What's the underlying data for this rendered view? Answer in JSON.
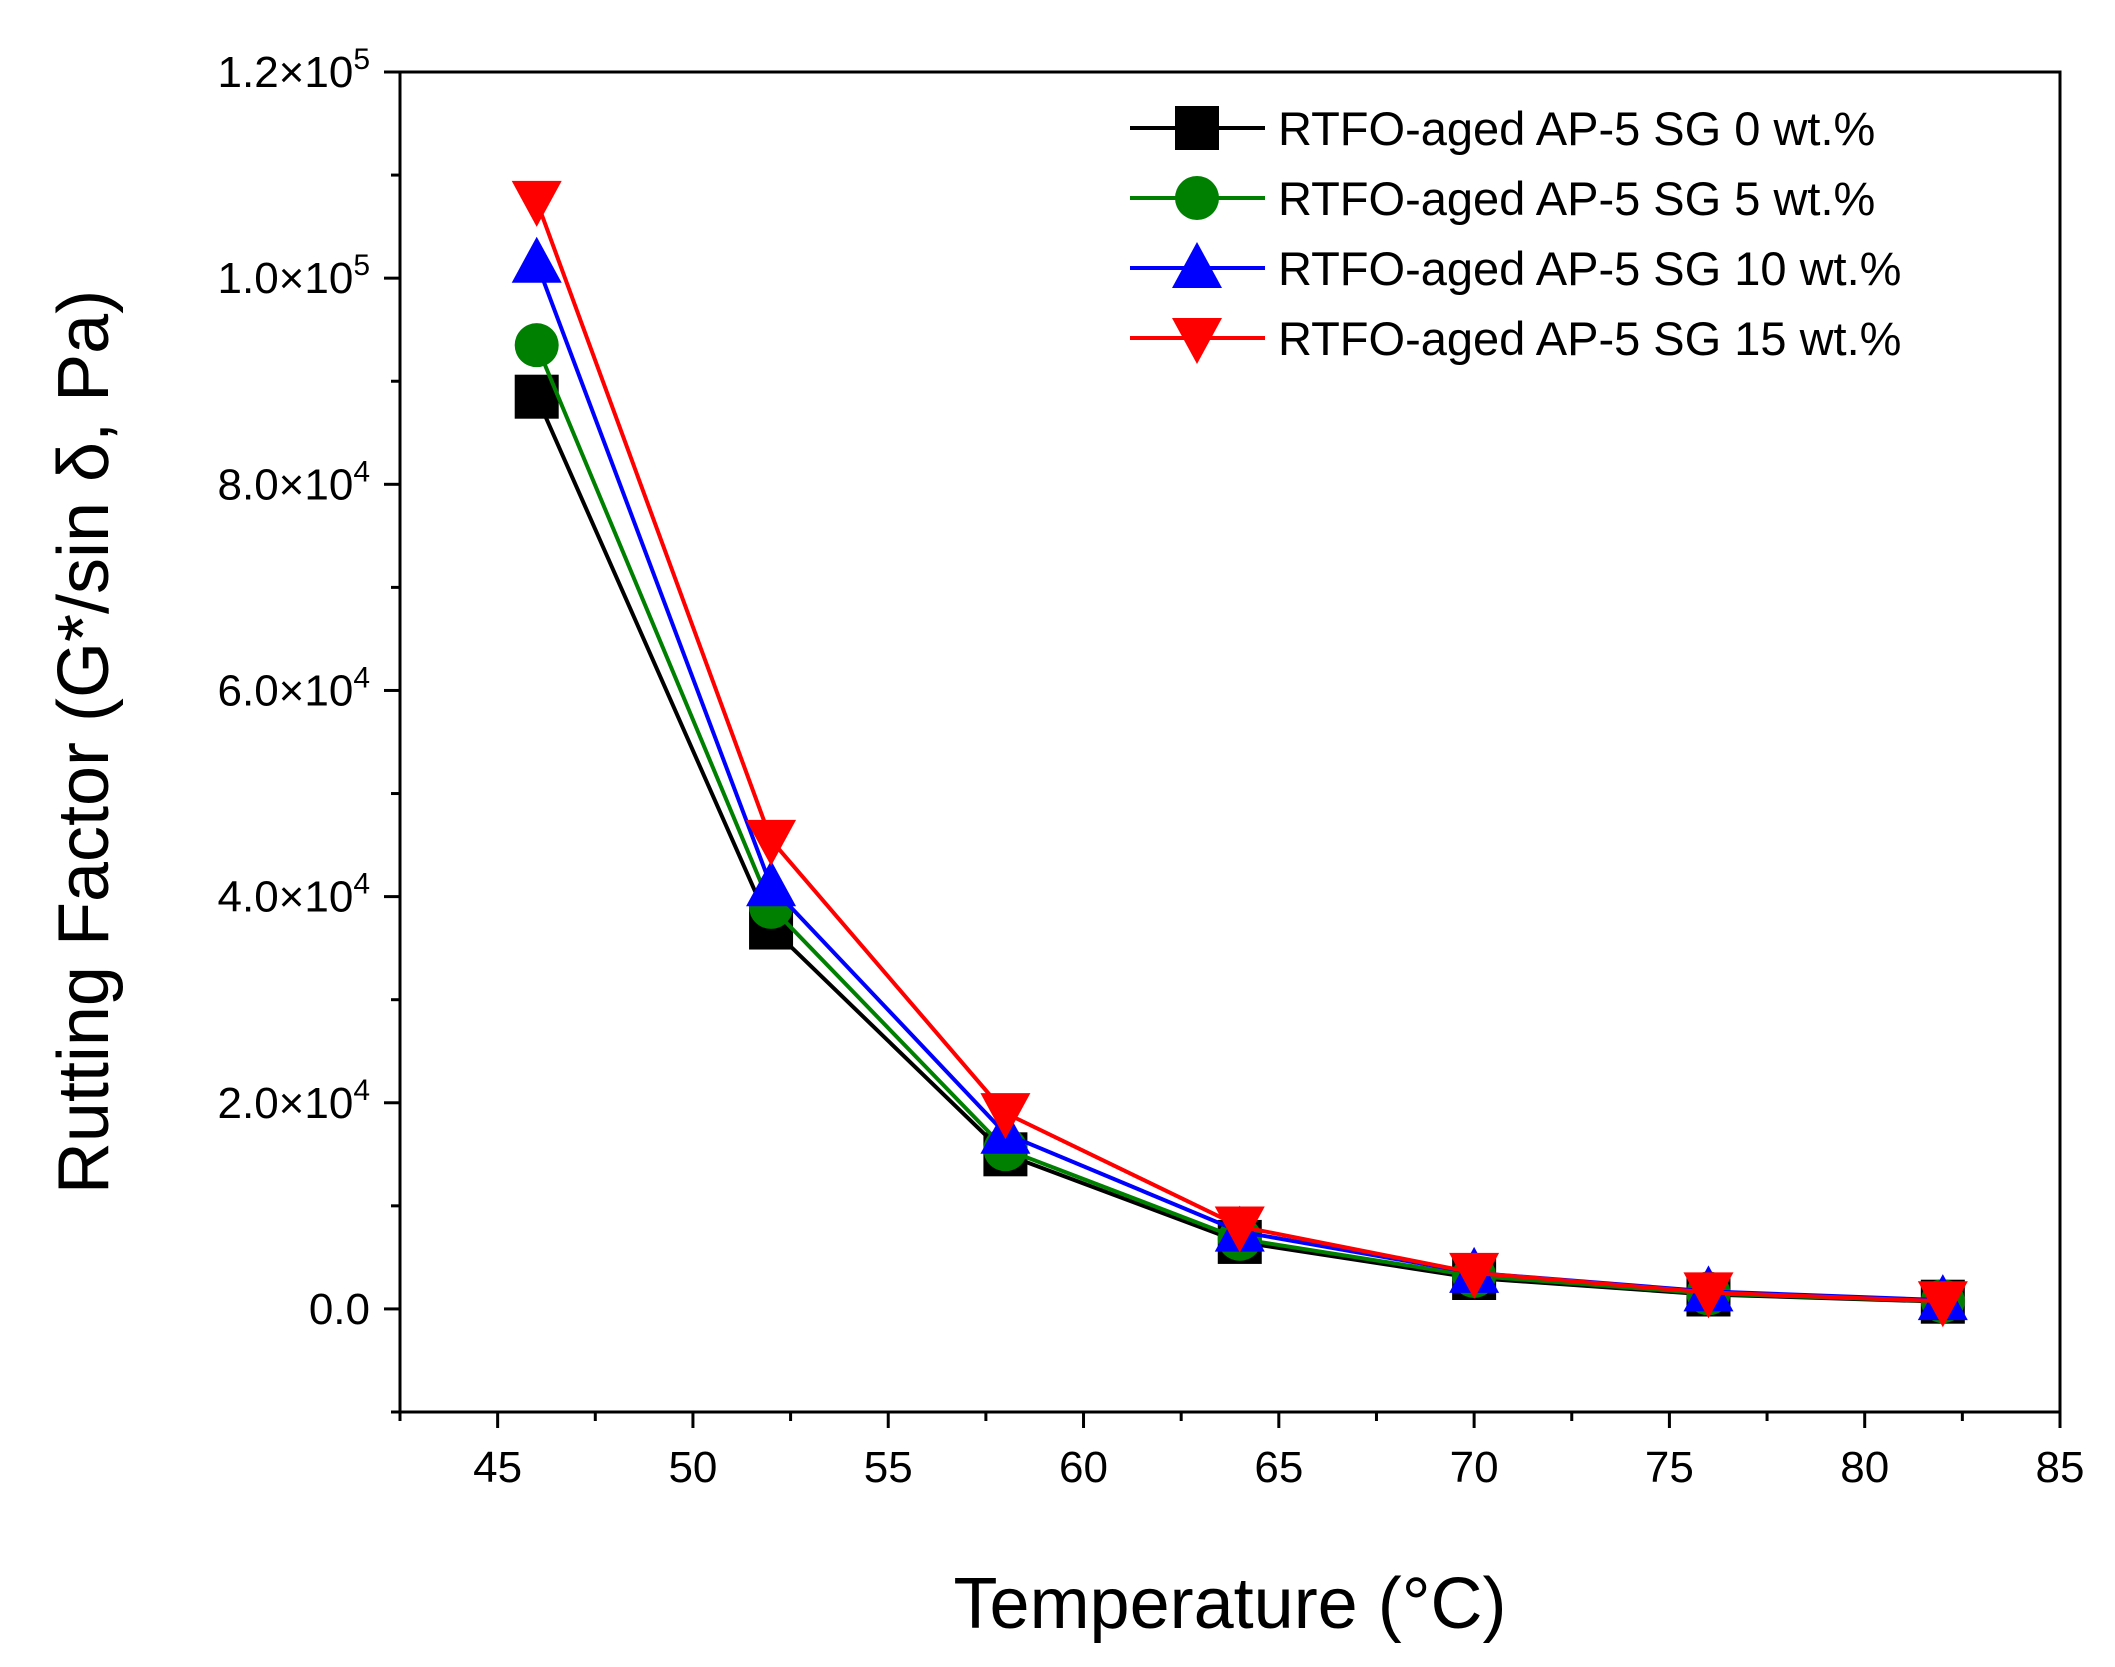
{
  "chart_data": {
    "type": "line",
    "title": "",
    "xlabel": "Temperature (°C)",
    "ylabel": "Rutting Factor (G*/sin δ, Pa)",
    "xlim": [
      42.5,
      85
    ],
    "ylim": [
      -10000,
      120000
    ],
    "x_ticks": [
      45,
      50,
      55,
      60,
      65,
      70,
      75,
      80,
      85
    ],
    "x_tick_labels": [
      "45",
      "50",
      "55",
      "60",
      "65",
      "70",
      "75",
      "80",
      "85"
    ],
    "y_ticks": [
      {
        "value": 0,
        "mantissa": "0.0",
        "exp": ""
      },
      {
        "value": 20000,
        "mantissa": "2.0×10",
        "exp": "4"
      },
      {
        "value": 40000,
        "mantissa": "4.0×10",
        "exp": "4"
      },
      {
        "value": 60000,
        "mantissa": "6.0×10",
        "exp": "4"
      },
      {
        "value": 80000,
        "mantissa": "8.0×10",
        "exp": "4"
      },
      {
        "value": 100000,
        "mantissa": "1.0×10",
        "exp": "5"
      },
      {
        "value": 120000,
        "mantissa": "1.2×10",
        "exp": "5"
      }
    ],
    "x": [
      46,
      52,
      58,
      64,
      70,
      76,
      82
    ],
    "series": [
      {
        "name": "RTFO-aged AP-5 SG 0 wt.%",
        "color": "#000000",
        "marker": "square",
        "values": [
          88500,
          37000,
          15000,
          6500,
          3000,
          1400,
          700
        ]
      },
      {
        "name": "RTFO-aged AP-5 SG 5 wt.%",
        "color": "#008000",
        "marker": "circle",
        "values": [
          93500,
          39000,
          15500,
          6800,
          3200,
          1500,
          750
        ]
      },
      {
        "name": "RTFO-aged AP-5 SG 10 wt.%",
        "color": "#0000FF",
        "marker": "triangle-up",
        "values": [
          101500,
          41000,
          17000,
          7500,
          3500,
          1700,
          850
        ]
      },
      {
        "name": "RTFO-aged AP-5 SG 15 wt.%",
        "color": "#FF0000",
        "marker": "triangle-down",
        "values": [
          107500,
          45500,
          19000,
          8000,
          3500,
          1600,
          750
        ]
      }
    ],
    "legend_position": "top-right",
    "grid": false
  }
}
